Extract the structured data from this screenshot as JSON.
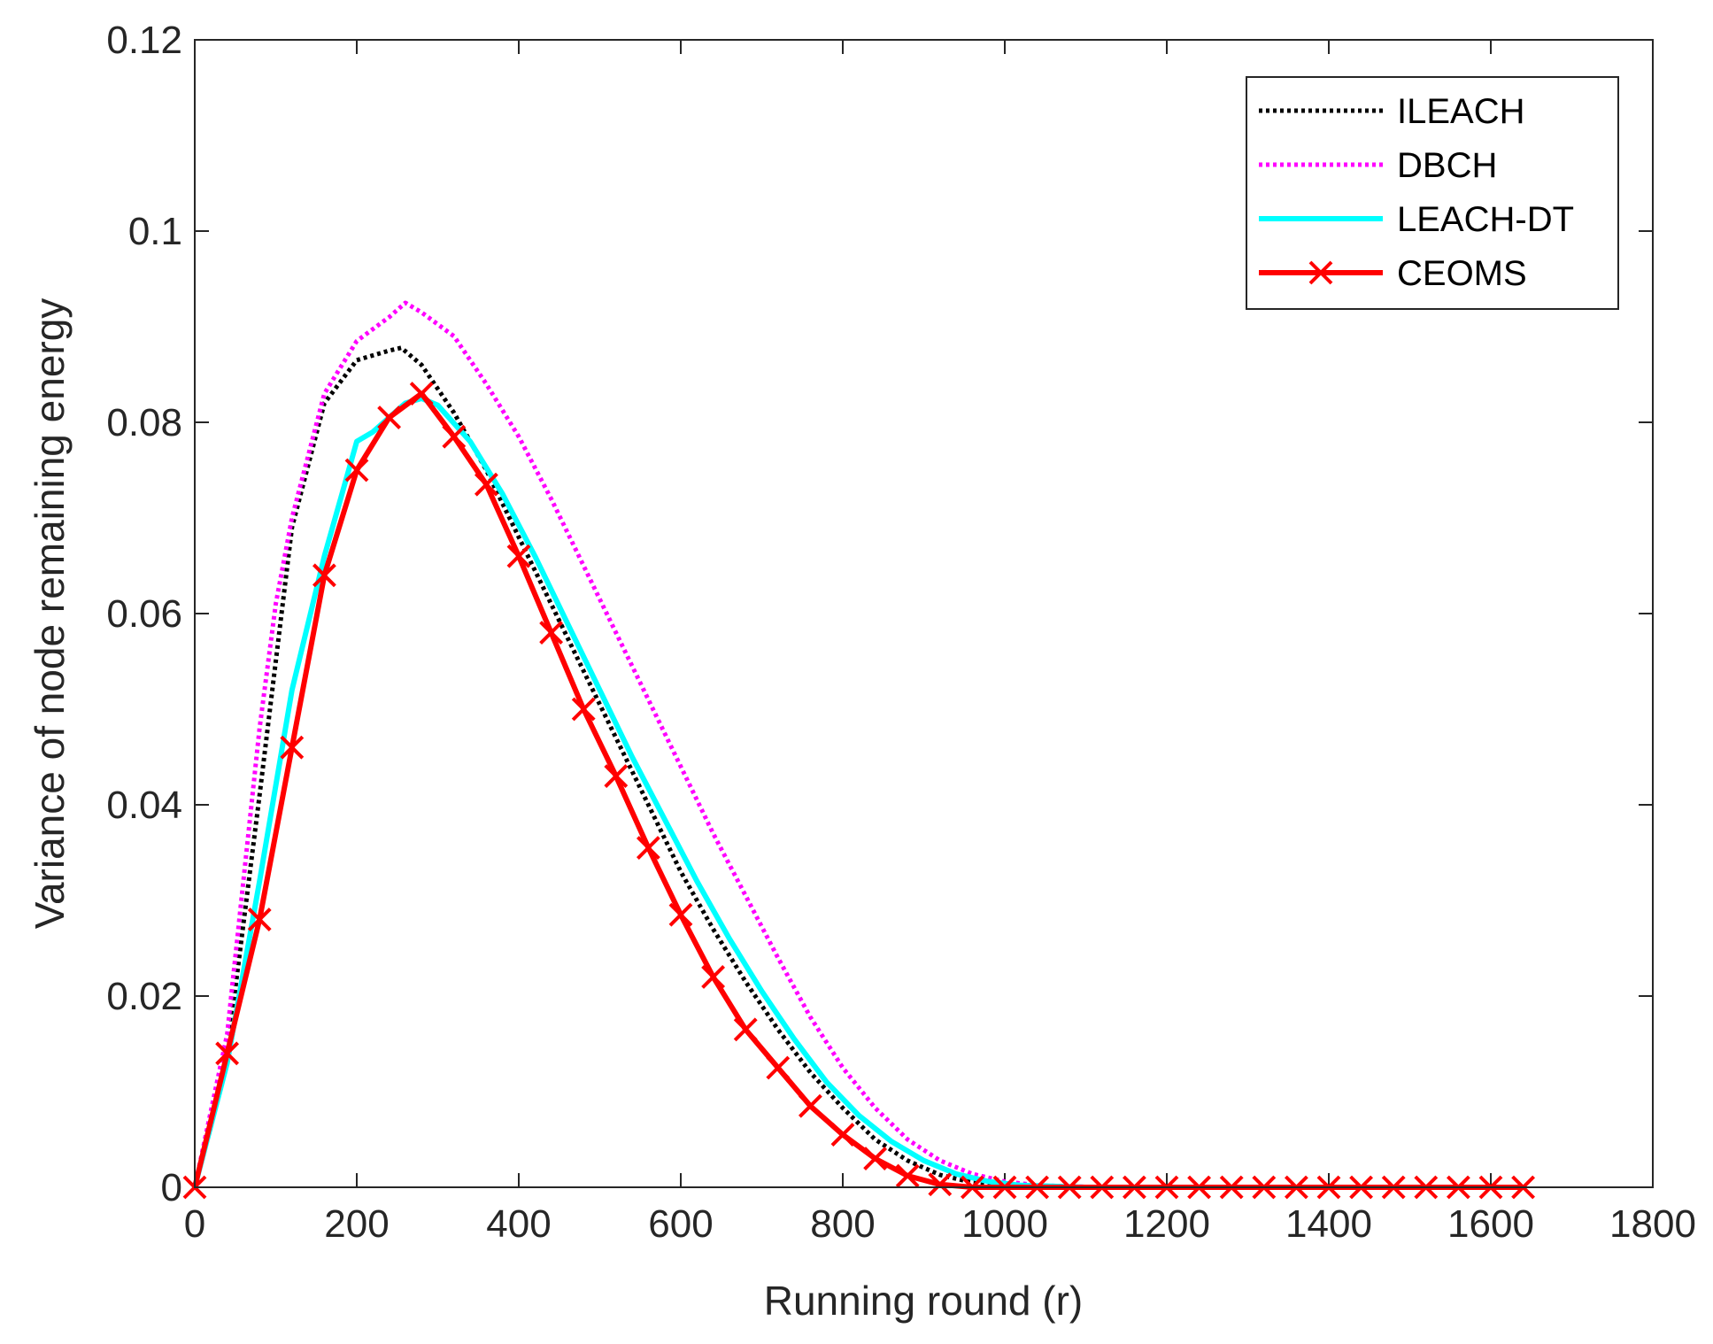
{
  "chart_data": {
    "type": "line",
    "title": "",
    "xlabel": "Running round (r)",
    "ylabel": "Variance of node remaining energy",
    "xlim": [
      0,
      1800
    ],
    "ylim": [
      0,
      0.12
    ],
    "xticks": [
      0,
      200,
      400,
      600,
      800,
      1000,
      1200,
      1400,
      1600,
      1800
    ],
    "yticks": [
      0,
      0.02,
      0.04,
      0.06,
      0.08,
      0.1,
      0.12
    ],
    "xtick_labels": [
      "0",
      "200",
      "400",
      "600",
      "800",
      "1000",
      "1200",
      "1400",
      "1600",
      "1800"
    ],
    "ytick_labels": [
      "0",
      "0.02",
      "0.04",
      "0.06",
      "0.08",
      "0.1",
      "0.12"
    ],
    "grid": false,
    "legend_position": "top-right",
    "series": [
      {
        "name": "ILEACH",
        "color": "#000000",
        "style": "dotted",
        "x": [
          0,
          40,
          80,
          120,
          160,
          200,
          240,
          255,
          280,
          320,
          360,
          400,
          440,
          480,
          520,
          560,
          600,
          640,
          680,
          720,
          760,
          800,
          840,
          880,
          920,
          960,
          1000,
          1040,
          1080,
          1120,
          1160,
          1200
        ],
        "y": [
          0,
          0.014,
          0.041,
          0.069,
          0.082,
          0.0865,
          0.0875,
          0.0878,
          0.086,
          0.081,
          0.075,
          0.068,
          0.061,
          0.054,
          0.047,
          0.04,
          0.033,
          0.027,
          0.0215,
          0.0165,
          0.012,
          0.0083,
          0.005,
          0.0028,
          0.0013,
          0.0005,
          0.0002,
          0.0001,
          0,
          0,
          0,
          0
        ]
      },
      {
        "name": "DBCH",
        "color": "#ff00ff",
        "style": "dotted",
        "x": [
          0,
          40,
          80,
          100,
          120,
          160,
          200,
          240,
          260,
          280,
          320,
          360,
          400,
          440,
          480,
          520,
          560,
          600,
          640,
          680,
          720,
          760,
          800,
          840,
          880,
          920,
          960,
          1000,
          1040,
          1080,
          1120,
          1160,
          1200,
          1240
        ],
        "y": [
          0,
          0.016,
          0.048,
          0.061,
          0.07,
          0.083,
          0.0885,
          0.091,
          0.0925,
          0.0915,
          0.089,
          0.084,
          0.0785,
          0.072,
          0.065,
          0.058,
          0.051,
          0.044,
          0.037,
          0.0305,
          0.024,
          0.0178,
          0.0125,
          0.0083,
          0.005,
          0.0028,
          0.0014,
          0.0006,
          0.0002,
          0.0001,
          0,
          0,
          0,
          0
        ]
      },
      {
        "name": "LEACH-DT",
        "color": "#00ffff",
        "style": "solid",
        "x": [
          0,
          40,
          80,
          120,
          160,
          190,
          200,
          220,
          260,
          280,
          300,
          340,
          380,
          420,
          460,
          500,
          540,
          580,
          620,
          660,
          700,
          740,
          780,
          820,
          860,
          900,
          940,
          980,
          1020,
          1060,
          1100,
          1140,
          1180,
          1220
        ],
        "y": [
          0,
          0.013,
          0.032,
          0.052,
          0.066,
          0.075,
          0.078,
          0.079,
          0.082,
          0.0825,
          0.0818,
          0.078,
          0.0725,
          0.066,
          0.059,
          0.052,
          0.045,
          0.0385,
          0.032,
          0.026,
          0.0205,
          0.0155,
          0.011,
          0.0075,
          0.0048,
          0.0028,
          0.0014,
          0.0006,
          0.0002,
          0.0001,
          0,
          0,
          0,
          0
        ]
      },
      {
        "name": "CEOMS",
        "color": "#ff0000",
        "style": "solid-x-markers",
        "x": [
          0,
          40,
          80,
          120,
          160,
          200,
          240,
          280,
          320,
          360,
          400,
          440,
          480,
          520,
          560,
          600,
          640,
          680,
          720,
          760,
          800,
          840,
          880,
          920,
          960,
          1000,
          1040,
          1080,
          1120,
          1160,
          1200,
          1240,
          1280,
          1320,
          1360,
          1400,
          1440,
          1480,
          1520,
          1560,
          1600,
          1640
        ],
        "y": [
          0,
          0.014,
          0.028,
          0.046,
          0.064,
          0.075,
          0.0805,
          0.083,
          0.0785,
          0.0735,
          0.066,
          0.058,
          0.05,
          0.043,
          0.0355,
          0.0285,
          0.022,
          0.0165,
          0.0125,
          0.0085,
          0.0055,
          0.003,
          0.0012,
          0.0003,
          0,
          0,
          0,
          0,
          0,
          0,
          0,
          0,
          0,
          0,
          0,
          0,
          0,
          0,
          0,
          0,
          0,
          0
        ]
      }
    ]
  }
}
